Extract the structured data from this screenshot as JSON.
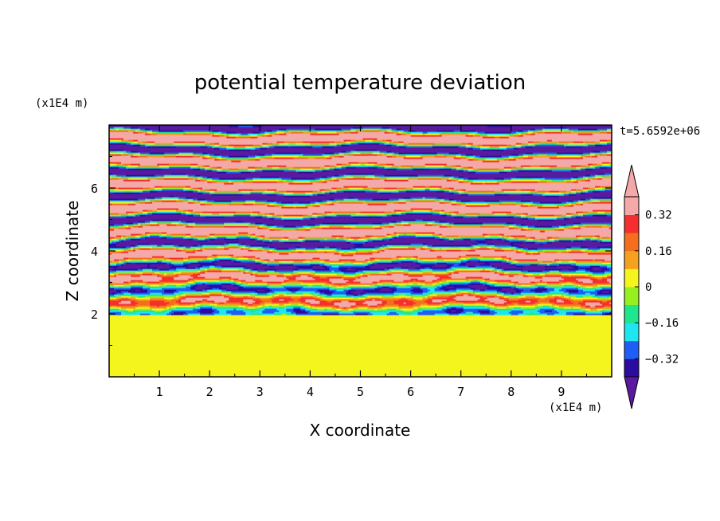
{
  "chart_data": {
    "type": "heatmap",
    "title": "potential temperature deviation",
    "xlabel": "X coordinate",
    "ylabel": "Z coordinate",
    "x_unit": "(x1E4 m)",
    "y_unit": "(x1E4 m)",
    "time_label": "t=5.6592e+06",
    "xlim": [
      0,
      10
    ],
    "ylim": [
      0,
      8
    ],
    "x_ticks": [
      "1",
      "2",
      "3",
      "4",
      "5",
      "6",
      "7",
      "8",
      "9"
    ],
    "x_tick_values": [
      1,
      2,
      3,
      4,
      5,
      6,
      7,
      8,
      9
    ],
    "y_ticks": [
      "2",
      "4",
      "6"
    ],
    "y_tick_values": [
      2,
      4,
      6
    ],
    "colorbar": {
      "tick_labels": [
        "0.32",
        "0.16",
        "0",
        "−0.16",
        "−0.32"
      ],
      "tick_values": [
        0.32,
        0.16,
        0,
        -0.16,
        -0.32
      ],
      "levels": [
        -0.4,
        -0.32,
        -0.24,
        -0.16,
        -0.08,
        0,
        0.08,
        0.16,
        0.24,
        0.32,
        0.4
      ],
      "colors": [
        "#5a1aa0",
        "#2c0ca0",
        "#1e5ef5",
        "#1ee6f0",
        "#1ee68c",
        "#96f01e",
        "#f5f51e",
        "#f5a01e",
        "#f56e1e",
        "#f52e2e",
        "#f5a8a8"
      ],
      "extend": "both",
      "placement": "right"
    },
    "field_description": {
      "lower_layer": {
        "z_range": [
          0,
          2
        ],
        "values": [
          0,
          0.08
        ]
      },
      "upper_layer": {
        "z_range": [
          2,
          8
        ],
        "values": [
          -0.4,
          0.4
        ]
      }
    }
  }
}
